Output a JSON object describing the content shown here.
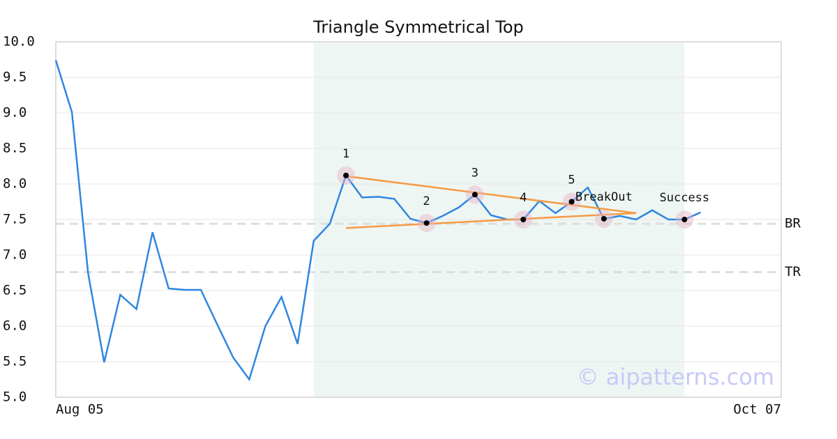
{
  "chart_data": {
    "type": "line",
    "title": "Triangle Symmetrical Top",
    "categories": [
      "Aug 05",
      null,
      null,
      null,
      null,
      null,
      null,
      null,
      null,
      null,
      null,
      null,
      null,
      null,
      null,
      null,
      null,
      null,
      null,
      null,
      null,
      null,
      null,
      null,
      null,
      null,
      null,
      null,
      null,
      null,
      null,
      null,
      null,
      null,
      null,
      null,
      null,
      null,
      null,
      null,
      null,
      null,
      null,
      null,
      null,
      "Oct 07"
    ],
    "series": [
      {
        "color": "#2f86e0",
        "values": [
          9.74,
          9.01,
          6.75,
          5.49,
          6.44,
          6.24,
          7.32,
          6.53,
          6.51,
          6.51,
          6.03,
          5.56,
          5.25,
          6.0,
          6.41,
          5.75,
          7.2,
          7.44,
          8.12,
          7.81,
          7.82,
          7.79,
          7.51,
          7.45,
          7.55,
          7.67,
          7.85,
          7.56,
          7.5,
          7.5,
          7.76,
          7.59,
          7.75,
          7.95,
          7.51,
          7.55,
          7.5,
          7.63,
          7.5,
          7.5,
          7.6,
          null,
          null,
          null,
          null,
          null
        ]
      }
    ],
    "ylim": [
      5,
      10
    ],
    "yticks": [
      {
        "value": 5,
        "label": "5.0"
      },
      5.5,
      {
        "value": 6,
        "label": "6.0"
      },
      6.5,
      {
        "value": 7,
        "label": "7.0"
      },
      7.5,
      {
        "value": 8,
        "label": "8.0"
      },
      8.5,
      {
        "value": 9,
        "label": "9.0"
      },
      9.5,
      {
        "value": 10,
        "label": "10.0"
      }
    ],
    "grid": true,
    "highlight_range": [
      16,
      39
    ],
    "highlight_color": "#eef6f3",
    "reference_lines": [
      {
        "label": "BR",
        "value": 7.44
      },
      {
        "label": "TR",
        "value": 6.76
      }
    ],
    "trend_lines": [
      {
        "color": "#f59a45",
        "x": [
          18,
          36
        ],
        "y": [
          8.11,
          7.59
        ]
      },
      {
        "color": "#f59a45",
        "x": [
          18,
          36
        ],
        "y": [
          7.38,
          7.59
        ]
      }
    ],
    "markers": [
      {
        "label": "1",
        "x": 18,
        "y": 8.12
      },
      {
        "label": "2",
        "x": 23,
        "y": 7.45
      },
      {
        "label": "3",
        "x": 26,
        "y": 7.85
      },
      {
        "label": "4",
        "x": 29,
        "y": 7.5
      },
      {
        "label": "5",
        "x": 32,
        "y": 7.75
      },
      {
        "label": "BreakOut",
        "x": 34,
        "y": 7.51
      },
      {
        "label": "Success",
        "x": 39,
        "y": 7.5
      }
    ],
    "watermark": "© aipatterns.com"
  }
}
